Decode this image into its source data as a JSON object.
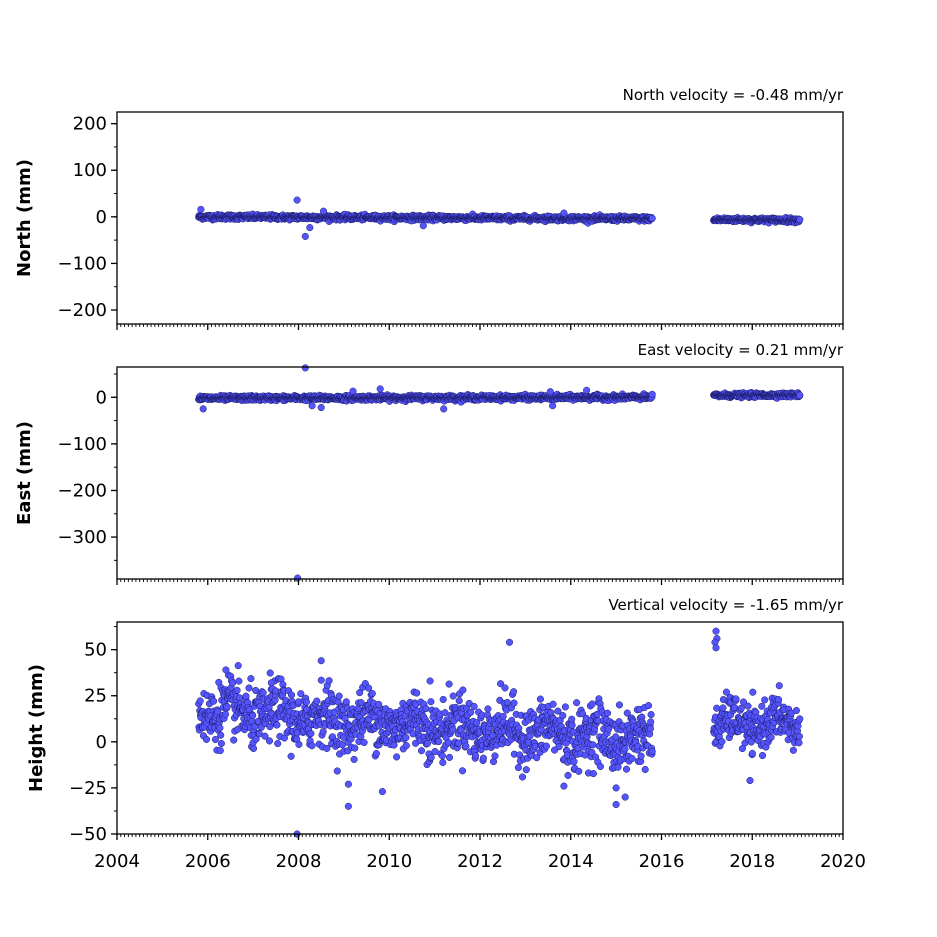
{
  "chart_data": [
    {
      "type": "scatter",
      "title": "North velocity = -0.48 mm/yr",
      "ylabel": "North (mm)",
      "xlim": [
        2004,
        2020
      ],
      "ylim": [
        -230,
        225
      ],
      "yticks": [
        200,
        100,
        0,
        -100,
        -200
      ],
      "xticks_labeled": false,
      "marker_color": "#5555ff",
      "marker_edge": "#1a1a66",
      "segments": [
        {
          "start": 2005.8,
          "end": 2015.8,
          "mean_start": 0,
          "mean_end": -4,
          "noise": 2.5
        },
        {
          "start": 2017.15,
          "end": 2019.05,
          "mean_start": -6,
          "mean_end": -7,
          "noise": 2.2
        }
      ],
      "outliers": [
        {
          "x": 2007.97,
          "y": 36
        },
        {
          "x": 2008.15,
          "y": -42
        },
        {
          "x": 2008.25,
          "y": -23
        },
        {
          "x": 2008.55,
          "y": 12
        },
        {
          "x": 2005.85,
          "y": 16
        },
        {
          "x": 2010.75,
          "y": -19
        },
        {
          "x": 2013.85,
          "y": 8
        }
      ]
    },
    {
      "type": "scatter",
      "title": "East velocity = 0.21 mm/yr",
      "ylabel": "East (mm)",
      "xlim": [
        2004,
        2020
      ],
      "ylim": [
        -390,
        65
      ],
      "yticks": [
        0,
        -100,
        -200,
        -300
      ],
      "xticks_labeled": false,
      "marker_color": "#5555ff",
      "marker_edge": "#1a1a66",
      "segments": [
        {
          "start": 2005.8,
          "end": 2015.8,
          "mean_start": -2,
          "mean_end": 0,
          "noise": 2.5
        },
        {
          "start": 2017.15,
          "end": 2019.05,
          "mean_start": 4,
          "mean_end": 5,
          "noise": 2.2
        }
      ],
      "outliers": [
        {
          "x": 2008.15,
          "y": 63
        },
        {
          "x": 2007.98,
          "y": -388
        },
        {
          "x": 2005.9,
          "y": -25
        },
        {
          "x": 2008.5,
          "y": -22
        },
        {
          "x": 2008.3,
          "y": -18
        },
        {
          "x": 2011.2,
          "y": -25
        },
        {
          "x": 2013.6,
          "y": -18
        },
        {
          "x": 2009.8,
          "y": 18
        },
        {
          "x": 2014.35,
          "y": 15
        },
        {
          "x": 2009.2,
          "y": 13
        },
        {
          "x": 2013.55,
          "y": 12
        }
      ]
    },
    {
      "type": "scatter",
      "title": "Vertical velocity = -1.65 mm/yr",
      "ylabel": "Height (mm)",
      "xlim": [
        2004,
        2020
      ],
      "ylim": [
        -50,
        65
      ],
      "yticks": [
        50,
        25,
        0,
        -25,
        -50
      ],
      "xticks": [
        2004,
        2006,
        2008,
        2010,
        2012,
        2014,
        2016,
        2018,
        2020
      ],
      "xticks_labeled": true,
      "marker_color": "#5555ff",
      "marker_edge": "#1a1a66",
      "segments": [
        {
          "start": 2005.8,
          "end": 2015.8,
          "mean_start": 17,
          "mean_end": 1,
          "noise": 8
        },
        {
          "start": 2017.15,
          "end": 2019.05,
          "mean_start": 9,
          "mean_end": 10,
          "noise": 6
        }
      ],
      "outliers": [
        {
          "x": 2017.2,
          "y": 60
        },
        {
          "x": 2017.22,
          "y": 56
        },
        {
          "x": 2017.18,
          "y": 54
        },
        {
          "x": 2017.2,
          "y": 51
        },
        {
          "x": 2012.65,
          "y": 54
        },
        {
          "x": 2008.5,
          "y": 44
        },
        {
          "x": 2007.97,
          "y": -50
        },
        {
          "x": 2009.1,
          "y": -35
        },
        {
          "x": 2009.1,
          "y": -23
        },
        {
          "x": 2009.85,
          "y": -27
        },
        {
          "x": 2015.0,
          "y": -34
        },
        {
          "x": 2015.2,
          "y": -30
        },
        {
          "x": 2015.0,
          "y": -25
        },
        {
          "x": 2017.95,
          "y": -21
        },
        {
          "x": 2013.85,
          "y": -24
        },
        {
          "x": 2006.4,
          "y": 39
        },
        {
          "x": 2007.4,
          "y": 32
        },
        {
          "x": 2010.9,
          "y": 33
        }
      ]
    }
  ]
}
